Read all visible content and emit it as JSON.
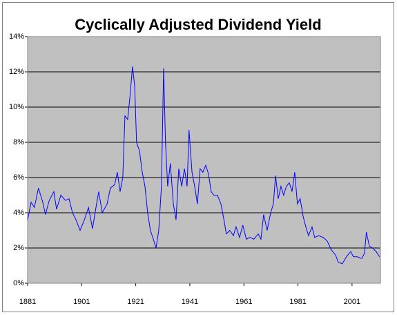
{
  "chart_data": {
    "type": "line",
    "title": "Cyclically Adjusted Dividend Yield",
    "x": [
      1881,
      1882.3,
      1883.5,
      1885,
      1886.6,
      1887.6,
      1889,
      1890.7,
      1891.7,
      1893.3,
      1895,
      1896.3,
      1897.6,
      1898.9,
      1900.4,
      1902,
      1903.5,
      1905,
      1906.5,
      1907.3,
      1908.6,
      1910.4,
      1911.6,
      1913.2,
      1914.2,
      1915.2,
      1916.2,
      1917,
      1918,
      1918.8,
      1919.8,
      1920.6,
      1921.3,
      1922.4,
      1923.4,
      1924.4,
      1925.4,
      1926.4,
      1927.5,
      1928.5,
      1929.5,
      1930.5,
      1931.3,
      1932,
      1932.8,
      1933.8,
      1934.9,
      1935.9,
      1936.9,
      1938,
      1939,
      1940,
      1940.7,
      1941.8,
      1942.8,
      1943.8,
      1944.8,
      1945.8,
      1946.9,
      1947.9,
      1948.9,
      1949.9,
      1951.2,
      1952.5,
      1953.5,
      1954.5,
      1955.8,
      1957.1,
      1958.1,
      1959.4,
      1960.6,
      1961.9,
      1963.2,
      1964.7,
      1966.3,
      1967.3,
      1968.3,
      1969.6,
      1970.9,
      1971.9,
      1972.7,
      1973.7,
      1974.7,
      1975.7,
      1976.7,
      1977.8,
      1978.8,
      1979.8,
      1980.8,
      1981.8,
      1982.9,
      1983.9,
      1984.9,
      1986.2,
      1987.2,
      1988.7,
      1990.3,
      1991.8,
      1993.3,
      1994.9,
      1995.9,
      1997.4,
      1998.9,
      2000.5,
      2001.5,
      2003,
      2004.6,
      2005.6,
      2006.3,
      2007.4,
      2008.6,
      2009.9,
      2011.2
    ],
    "series": [
      {
        "color": "#0000ff",
        "values": [
          3.6,
          4.6,
          4.3,
          5.4,
          4.6,
          3.9,
          4.7,
          5.2,
          4.2,
          5.0,
          4.7,
          4.8,
          4.0,
          3.6,
          3.0,
          3.6,
          4.3,
          3.1,
          4.5,
          5.2,
          4.0,
          4.5,
          5.4,
          5.6,
          6.3,
          5.2,
          6.0,
          9.5,
          9.3,
          10.5,
          12.3,
          11.2,
          8.0,
          7.5,
          6.3,
          5.5,
          4.0,
          3.0,
          2.5,
          2.0,
          3.0,
          5.5,
          12.2,
          8.0,
          5.5,
          6.8,
          4.5,
          3.6,
          6.5,
          5.5,
          6.5,
          5.5,
          8.7,
          6.3,
          5.5,
          4.5,
          6.5,
          6.3,
          6.7,
          6.2,
          5.2,
          5.0,
          5.0,
          4.5,
          3.7,
          2.8,
          3.0,
          2.7,
          3.2,
          2.6,
          3.3,
          2.5,
          2.6,
          2.5,
          2.8,
          2.5,
          3.9,
          3.0,
          4.0,
          4.5,
          6.1,
          4.8,
          5.5,
          5.0,
          5.5,
          5.7,
          5.2,
          6.3,
          4.5,
          4.8,
          3.8,
          3.2,
          2.7,
          3.2,
          2.6,
          2.7,
          2.6,
          2.4,
          1.9,
          1.6,
          1.2,
          1.1,
          1.5,
          1.8,
          1.5,
          1.5,
          1.4,
          1.7,
          2.9,
          2.1,
          2.0,
          1.8,
          1.5
        ]
      }
    ],
    "xlim": [
      1881,
      2011.5
    ],
    "xticks": [
      1881,
      1901,
      1921,
      1941,
      1961,
      1981,
      2001
    ],
    "ylim": [
      0,
      14
    ],
    "yticks": [
      {
        "value": 0,
        "label": "0%"
      },
      {
        "value": 2,
        "label": "2%"
      },
      {
        "value": 4,
        "label": "4%"
      },
      {
        "value": 6,
        "label": "6%"
      },
      {
        "value": 8,
        "label": "8%"
      },
      {
        "value": 10,
        "label": "10%"
      },
      {
        "value": 12,
        "label": "12%"
      },
      {
        "value": 14,
        "label": "14%"
      }
    ],
    "grid": true,
    "plot_background": "#c0c0c0"
  }
}
